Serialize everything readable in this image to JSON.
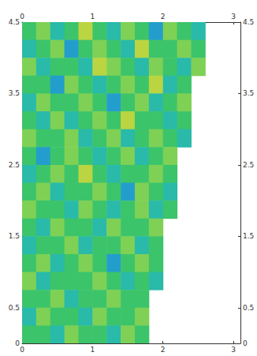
{
  "chart_data": {
    "type": "heatmap",
    "xlim": [
      0,
      3.1
    ],
    "xticks": [
      0,
      1,
      2,
      3
    ],
    "ylim": [
      0,
      4.5
    ],
    "yticks": [
      0,
      0.5,
      1.5,
      2.5,
      3.5,
      4.5
    ],
    "grid": false,
    "x_bins": [
      0,
      0.2,
      0.4,
      0.6,
      0.8,
      1.0,
      1.2,
      1.4,
      1.6,
      1.8,
      2.0,
      2.2,
      2.4,
      2.6,
      2.8,
      3.0
    ],
    "y_bins": [
      4.5,
      4.25,
      4.0,
      3.75,
      3.5,
      3.25,
      3.0,
      2.75,
      2.5,
      2.25,
      2.0,
      1.75,
      1.5,
      1.25,
      1.0,
      0.75,
      0.5,
      0.25,
      0
    ],
    "zlim": [
      2,
      8
    ],
    "colors": [
      "#2a6fd1",
      "#1fb5c9",
      "#3cc46a",
      "#9fd84a",
      "#f0d030"
    ],
    "cells": [
      [
        5,
        6,
        4,
        5,
        7,
        5,
        4,
        6,
        5,
        3,
        6,
        5,
        4,
        null,
        null
      ],
      [
        4,
        5,
        6,
        3,
        5,
        6,
        5,
        4,
        7,
        5,
        5,
        6,
        5,
        null,
        null
      ],
      [
        6,
        4,
        5,
        5,
        4,
        7,
        6,
        5,
        4,
        6,
        5,
        4,
        6,
        null,
        null
      ],
      [
        5,
        5,
        3,
        6,
        5,
        4,
        5,
        6,
        5,
        7,
        4,
        5,
        null,
        null,
        null
      ],
      [
        4,
        6,
        5,
        5,
        6,
        5,
        3,
        5,
        6,
        4,
        5,
        6,
        null,
        null,
        null
      ],
      [
        5,
        4,
        6,
        4,
        5,
        6,
        5,
        7,
        5,
        5,
        4,
        5,
        null,
        null,
        null
      ],
      [
        6,
        5,
        5,
        6,
        4,
        5,
        6,
        4,
        5,
        6,
        5,
        4,
        null,
        null,
        null
      ],
      [
        5,
        3,
        5,
        6,
        5,
        4,
        5,
        6,
        4,
        5,
        6,
        null,
        null,
        null,
        null
      ],
      [
        4,
        5,
        6,
        5,
        7,
        5,
        4,
        5,
        5,
        6,
        5,
        null,
        null,
        null,
        null
      ],
      [
        5,
        6,
        4,
        5,
        5,
        6,
        5,
        3,
        6,
        5,
        4,
        null,
        null,
        null,
        null
      ],
      [
        6,
        5,
        5,
        4,
        6,
        5,
        4,
        5,
        6,
        4,
        5,
        null,
        null,
        null,
        null
      ],
      [
        5,
        4,
        6,
        5,
        5,
        4,
        6,
        5,
        5,
        6,
        null,
        null,
        null,
        null,
        null
      ],
      [
        4,
        5,
        5,
        6,
        4,
        5,
        5,
        6,
        4,
        5,
        null,
        null,
        null,
        null,
        null
      ],
      [
        5,
        6,
        4,
        5,
        6,
        5,
        3,
        5,
        6,
        5,
        null,
        null,
        null,
        null,
        null
      ],
      [
        6,
        4,
        5,
        5,
        5,
        6,
        5,
        4,
        5,
        4,
        null,
        null,
        null,
        null,
        null
      ],
      [
        5,
        5,
        6,
        4,
        5,
        5,
        6,
        5,
        5,
        null,
        null,
        null,
        null,
        null,
        null
      ],
      [
        4,
        6,
        5,
        5,
        4,
        6,
        5,
        5,
        6,
        null,
        null,
        null,
        null,
        null,
        null
      ],
      [
        5,
        5,
        4,
        6,
        5,
        5,
        4,
        6,
        5,
        null,
        null,
        null,
        null,
        null,
        null
      ]
    ]
  }
}
